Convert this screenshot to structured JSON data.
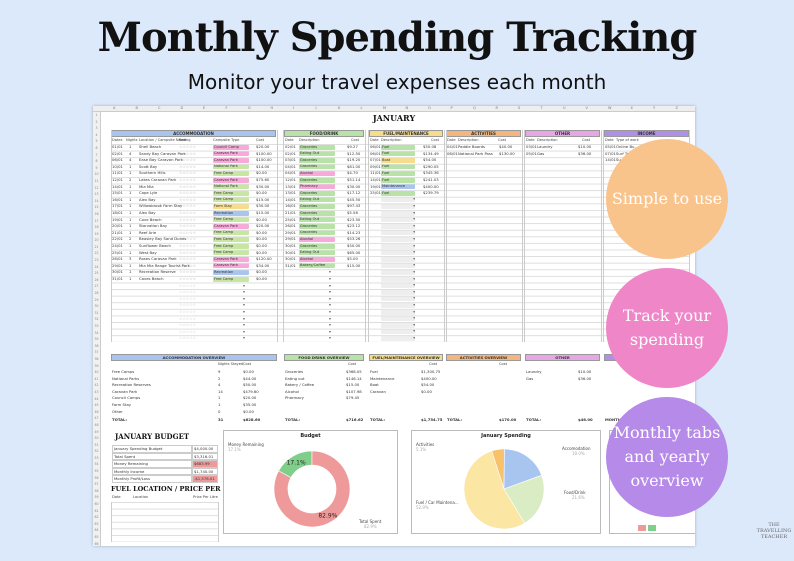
{
  "title": "Monthly Spending Tracking",
  "subtitle": "Monitor your travel expenses each month",
  "sheet": {
    "month": "JANUARY",
    "col_letters": [
      "A",
      "B",
      "C",
      "D",
      "E",
      "F",
      "G",
      "H",
      "I",
      "J",
      "K",
      "L",
      "M",
      "N",
      "O",
      "P",
      "Q",
      "R",
      "S",
      "T",
      "U",
      "V",
      "W",
      "X",
      "Y",
      "Z",
      "AA"
    ],
    "sections": {
      "accommodation": "ACCOMMODATION",
      "food": "FOOD/DRINK",
      "fuel": "FUEL/MAINTENANCE",
      "activities": "ACTIVITIES",
      "other": "OTHER",
      "income": "INCOME"
    },
    "acc_headers": [
      "Dates",
      "Nights",
      "Location / Campsite Name",
      "Rating",
      "Campsite Type",
      "Cost"
    ],
    "food_headers": [
      "Date",
      "Description",
      "",
      "Cost"
    ],
    "fuel_headers": [
      "Date",
      "Description",
      "Cost"
    ],
    "act_headers": [
      "Date",
      "Description",
      "Cost"
    ],
    "other_headers": [
      "Date",
      "Description",
      "Cost"
    ],
    "inc_headers": [
      "Date",
      "Type of work"
    ],
    "accommodation_rows": [
      [
        "01/01",
        "1",
        "Shell Beach",
        "Council Camp",
        "$20.00"
      ],
      [
        "02/01",
        "4",
        "Sandy Bay Caravan Park",
        "Caravan Park",
        "$100.00"
      ],
      [
        "06/01",
        "4",
        "Ease Bay Caravan Park",
        "Caravan Park",
        "$100.00"
      ],
      [
        "10/01",
        "1",
        "Scott Bay",
        "National Park",
        "$14.00"
      ],
      [
        "11/01",
        "1",
        "Southern Hills",
        "Free Camp",
        "$0.00"
      ],
      [
        "12/01",
        "2",
        "Lakes Caravan Park",
        "Caravan Park",
        "$75.60"
      ],
      [
        "14/01",
        "1",
        "Mia Mia",
        "National Park",
        "$30.00"
      ],
      [
        "15/01",
        "1",
        "Cape Lyle",
        "Free Camp",
        "$0.00"
      ],
      [
        "16/01",
        "1",
        "Alex Bay",
        "Free Camp",
        "$15.00"
      ],
      [
        "17/01",
        "1",
        "Willowbrook Farm Stay",
        "Farm Stay",
        "$30.00"
      ],
      [
        "18/01",
        "1",
        "Alex Bay",
        "Recreation",
        "$15.00"
      ],
      [
        "19/01",
        "1",
        "Cove Beach",
        "Free Camp",
        "$0.00"
      ],
      [
        "20/01",
        "1",
        "Starvation Bay",
        "Caravan Park",
        "$20.00"
      ],
      [
        "21/01",
        "1",
        "Reef Arie",
        "Free Camp",
        "$0.00"
      ],
      [
        "22/01",
        "2",
        "Beasley Bay Sand Dunes",
        "Free Camp",
        "$0.00"
      ],
      [
        "24/01",
        "1",
        "Sunflower Beach",
        "Free Camp",
        "$0.00"
      ],
      [
        "25/01",
        "1",
        "West Bay",
        "Free Camp",
        "$0.00"
      ],
      [
        "26/01",
        "3",
        "Roses Caravan Park",
        "Caravan Park",
        "$120.00"
      ],
      [
        "29/01",
        "1",
        "Mia Mia Range Tourist Park",
        "Caravan Park",
        "$34.00"
      ],
      [
        "30/01",
        "1",
        "Recreation Reserve",
        "Recreation",
        "$0.00"
      ],
      [
        "31/01",
        "1",
        "Caves Beach",
        "Free Camp",
        "$0.00"
      ]
    ],
    "food_rows": [
      [
        "02/01",
        "Groceries",
        "$9.27"
      ],
      [
        "02/01",
        "Eating Out",
        "$12.50"
      ],
      [
        "03/01",
        "Groceries",
        "$19.20"
      ],
      [
        "04/01",
        "Groceries",
        "$81.00"
      ],
      [
        "04/01",
        "Alcohol",
        "$4.70"
      ],
      [
        "12/01",
        "Groceries",
        "$51.14"
      ],
      [
        "13/01",
        "Pharmacy",
        "$30.00"
      ],
      [
        "13/01",
        "Groceries",
        "$17.12"
      ],
      [
        "14/01",
        "Eating Out",
        "$45.50"
      ],
      [
        "16/01",
        "Groceries",
        "$97.43"
      ],
      [
        "21/01",
        "Groceries",
        "$5.56"
      ],
      [
        "25/01",
        "Eating Out",
        "$23.50"
      ],
      [
        "26/01",
        "Groceries",
        "$23.12"
      ],
      [
        "29/01",
        "Groceries",
        "$14.23"
      ],
      [
        "29/01",
        "Alcohol",
        "$53.26"
      ],
      [
        "30/01",
        "Groceries",
        "$50.00"
      ],
      [
        "30/01",
        "Eating Out",
        "$65.00"
      ],
      [
        "30/01",
        "Alcohol",
        "$5.00"
      ],
      [
        "31/01",
        "Bakery/Coffee",
        "$15.00"
      ]
    ],
    "fuel_rows": [
      [
        "06/01",
        "Fuel",
        "$50.08"
      ],
      [
        "06/01",
        "Fuel",
        "$134.49"
      ],
      [
        "07/01",
        "Boat",
        "$54.00"
      ],
      [
        "09/01",
        "Fuel",
        "$290.05"
      ],
      [
        "11/01",
        "Fuel",
        "$345.36"
      ],
      [
        "14/01",
        "Fuel",
        "$241.03"
      ],
      [
        "19/01",
        "Maintenance",
        "$400.00"
      ],
      [
        "25/01",
        "Fuel",
        "$239.79"
      ]
    ],
    "activity_rows": [
      [
        "04/01",
        "Paddle Boards",
        "$40.00"
      ],
      [
        "08/01",
        "National Park Pass",
        "$130.00"
      ]
    ],
    "other_rows": [
      [
        "03/01",
        "Laundry",
        "$10.00"
      ],
      [
        "05/01",
        "Gas",
        "$36.00"
      ]
    ],
    "income_rows": [
      [
        "05/01",
        "Online Bu..."
      ],
      [
        "07/01",
        "Surf Tr..."
      ],
      [
        "14/01",
        "Su..."
      ]
    ],
    "acc_overview": {
      "title": "ACCOMMODATION OVERVIEW",
      "headers": [
        "",
        "Nights Stayed",
        "Cost"
      ],
      "rows": [
        [
          "Free Camps",
          "9",
          "$0.00"
        ],
        [
          "National Parks",
          "2",
          "$44.00"
        ],
        [
          "Recreation Reserves",
          "4",
          "$50.00"
        ],
        [
          "Caravan Park",
          "14",
          "$479.60"
        ],
        [
          "Council Camps",
          "1",
          "$20.00"
        ],
        [
          "Farm Stay",
          "1",
          "$35.00"
        ],
        [
          "Other",
          "0",
          "$0.00"
        ]
      ],
      "total": [
        "TOTAL:",
        "31",
        "$628.60"
      ]
    },
    "food_overview": {
      "title": "FOOD DRINK OVERVIEW",
      "headers": [
        "",
        "Cost"
      ],
      "rows": [
        [
          "Groceries",
          "$368.05"
        ],
        [
          "Eating out",
          "$146.14"
        ],
        [
          "Bakery / Coffee",
          "$15.00"
        ],
        [
          "Alcohol",
          "$107.98"
        ],
        [
          "Pharmacy",
          "$79.45"
        ]
      ],
      "total": [
        "TOTAL:",
        "$716.62"
      ]
    },
    "fuel_overview": {
      "title": "FUEL/MAINTENANCE OVERVIEW",
      "headers": [
        "",
        "Cost"
      ],
      "rows": [
        [
          "Fuel",
          "$1,300.75"
        ],
        [
          "Maintenance",
          "$400.00"
        ],
        [
          "Boat",
          "$54.00"
        ],
        [
          "Caravan",
          "$0.00"
        ]
      ],
      "total": [
        "TOTAL:",
        "$1,754.75"
      ]
    },
    "act_overview": {
      "title": "ACTIVITIES OVERVIEW",
      "headers": [
        "",
        "Cost"
      ],
      "total": [
        "TOTAL:",
        "$170.00"
      ]
    },
    "other_overview": {
      "title": "OTHER",
      "rows": [
        [
          "Laundry",
          "$10.00"
        ],
        [
          "Gas",
          "$36.00"
        ]
      ],
      "total": [
        "TOTAL:",
        "$46.00"
      ]
    },
    "income_overview": {
      "total": [
        "MONTHLY IN..."
      ]
    },
    "budget": {
      "title": "JANUARY BUDGET",
      "rows": [
        [
          "January Spending Budget",
          "$4,000.00"
        ],
        [
          "Total Spent",
          "$3,316.01"
        ],
        [
          "Money Remaining",
          "$683.99"
        ],
        [
          "Monthly Income",
          "$1,740.00"
        ],
        [
          "Monthly Profit/Loss",
          "-$1,576.01"
        ]
      ]
    },
    "fuel_location": {
      "title": "FUEL LOCATION / PRICE PER LITRE",
      "headers": [
        "Date",
        "Location",
        "Price Per Litre"
      ]
    }
  },
  "chart_data": [
    {
      "type": "pie",
      "title": "Budget",
      "categories": [
        "Money Remaining",
        "Total Spent"
      ],
      "values": [
        17.1,
        82.9
      ],
      "labels": [
        "17.1%",
        "82.9%"
      ],
      "sub_labels": [
        "17.1%",
        "82.9%"
      ],
      "colors": [
        "#7fcf8a",
        "#ef9a9a"
      ],
      "donut": true
    },
    {
      "type": "pie",
      "title": "January Spending",
      "categories": [
        "Activities",
        "Accomodation",
        "Food/Drink",
        "Fuel / Car Maintena..."
      ],
      "values": [
        5.1,
        19.0,
        21.6,
        52.9
      ],
      "sub_labels": [
        "5.1%",
        "19.0%",
        "21.6%",
        "52.9%"
      ],
      "colors": [
        "#f7c26b",
        "#a8c5f0",
        "#d9ecc4",
        "#fbe6a3"
      ]
    }
  ],
  "circles": [
    {
      "text": "Simple to use",
      "color": "#f9c48c"
    },
    {
      "text": "Track your spending",
      "color": "#ee86c8"
    },
    {
      "text": "Monthly tabs and yearly overview",
      "color": "#b68ae8"
    }
  ],
  "brand": "THE TRAVELLING TEACHER"
}
